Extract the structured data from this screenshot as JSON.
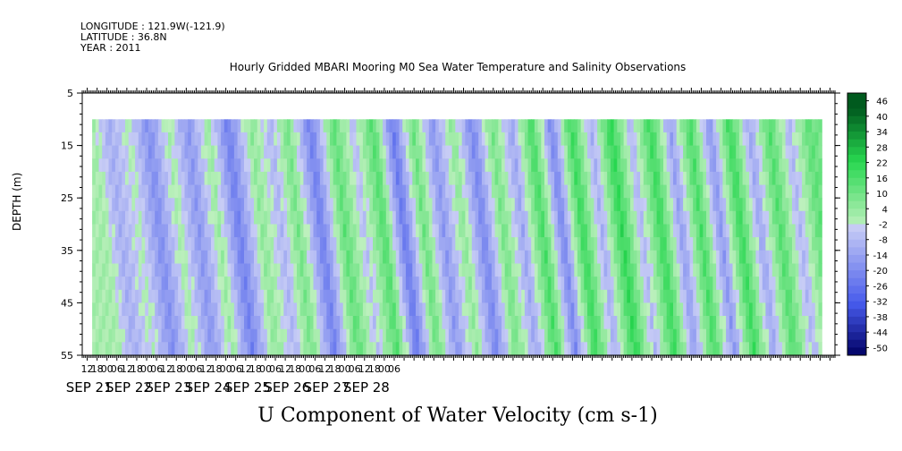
{
  "header": {
    "longitude": "LONGITUDE : 121.9W(-121.9)",
    "latitude": "LATITUDE : 36.8N",
    "year": "YEAR : 2011",
    "title": "Hourly Gridded MBARI Mooring M0 Sea Water Temperature and Salinity Observations"
  },
  "chart_data": {
    "type": "heatmap",
    "title": "U Component of Water Velocity (cm s-1)",
    "ylabel": "DEPTH (m)",
    "y_ticks": [
      "5",
      "15",
      "25",
      "35",
      "45",
      "55"
    ],
    "ylim": [
      5,
      55
    ],
    "y_inverted": true,
    "x_hour_ticks": [
      "12",
      "18",
      "00",
      "06",
      "12",
      "18",
      "00",
      "06",
      "12",
      "18",
      "00",
      "06",
      "12",
      "18",
      "00",
      "06",
      "12",
      "18",
      "00",
      "06",
      "12",
      "18",
      "00",
      "06",
      "12",
      "18",
      "00",
      "06",
      "12",
      "18",
      "00",
      "06"
    ],
    "x_day_labels": [
      "SEP 21",
      "SEP 22",
      "SEP 23",
      "SEP 24",
      "SEP 25",
      "SEP 26",
      "SEP 27",
      "SEP 28"
    ],
    "x_range_hours": [
      9,
      465
    ],
    "data_start_hour": 15,
    "data_end_hour": 456,
    "data_depth_range": [
      10,
      55
    ],
    "colorbar_labels": [
      "46",
      "40",
      "34",
      "28",
      "22",
      "16",
      "10",
      "4",
      "-2",
      "-8",
      "-14",
      "-20",
      "-26",
      "-32",
      "-38",
      "-44",
      "-50"
    ],
    "colorbar_range": [
      -50,
      52
    ],
    "grid": false,
    "approx_u_by_time": [
      {
        "hour": 15,
        "u": 4
      },
      {
        "hour": 24,
        "u": -8
      },
      {
        "hour": 36,
        "u": 2
      },
      {
        "hour": 48,
        "u": -16
      },
      {
        "hour": 60,
        "u": 4
      },
      {
        "hour": 72,
        "u": -14
      },
      {
        "hour": 84,
        "u": 6
      },
      {
        "hour": 96,
        "u": -20
      },
      {
        "hour": 110,
        "u": 8
      },
      {
        "hour": 122,
        "u": -6
      },
      {
        "hour": 132,
        "u": 12
      },
      {
        "hour": 146,
        "u": -20
      },
      {
        "hour": 160,
        "u": 16
      },
      {
        "hour": 172,
        "u": -4
      },
      {
        "hour": 184,
        "u": 18
      },
      {
        "hour": 196,
        "u": -22
      },
      {
        "hour": 208,
        "u": 14
      },
      {
        "hour": 220,
        "u": -14
      },
      {
        "hour": 232,
        "u": 8
      },
      {
        "hour": 244,
        "u": -18
      },
      {
        "hour": 256,
        "u": 12
      },
      {
        "hour": 268,
        "u": -10
      },
      {
        "hour": 280,
        "u": 20
      },
      {
        "hour": 292,
        "u": -18
      },
      {
        "hour": 304,
        "u": 22
      },
      {
        "hour": 316,
        "u": -8
      },
      {
        "hour": 328,
        "u": 24
      },
      {
        "hour": 340,
        "u": -6
      },
      {
        "hour": 352,
        "u": 22
      },
      {
        "hour": 364,
        "u": -12
      },
      {
        "hour": 376,
        "u": 20
      },
      {
        "hour": 388,
        "u": -14
      },
      {
        "hour": 400,
        "u": 22
      },
      {
        "hour": 412,
        "u": -10
      },
      {
        "hour": 424,
        "u": 18
      },
      {
        "hour": 436,
        "u": -6
      },
      {
        "hour": 448,
        "u": 16
      },
      {
        "hour": 456,
        "u": 10
      }
    ]
  }
}
